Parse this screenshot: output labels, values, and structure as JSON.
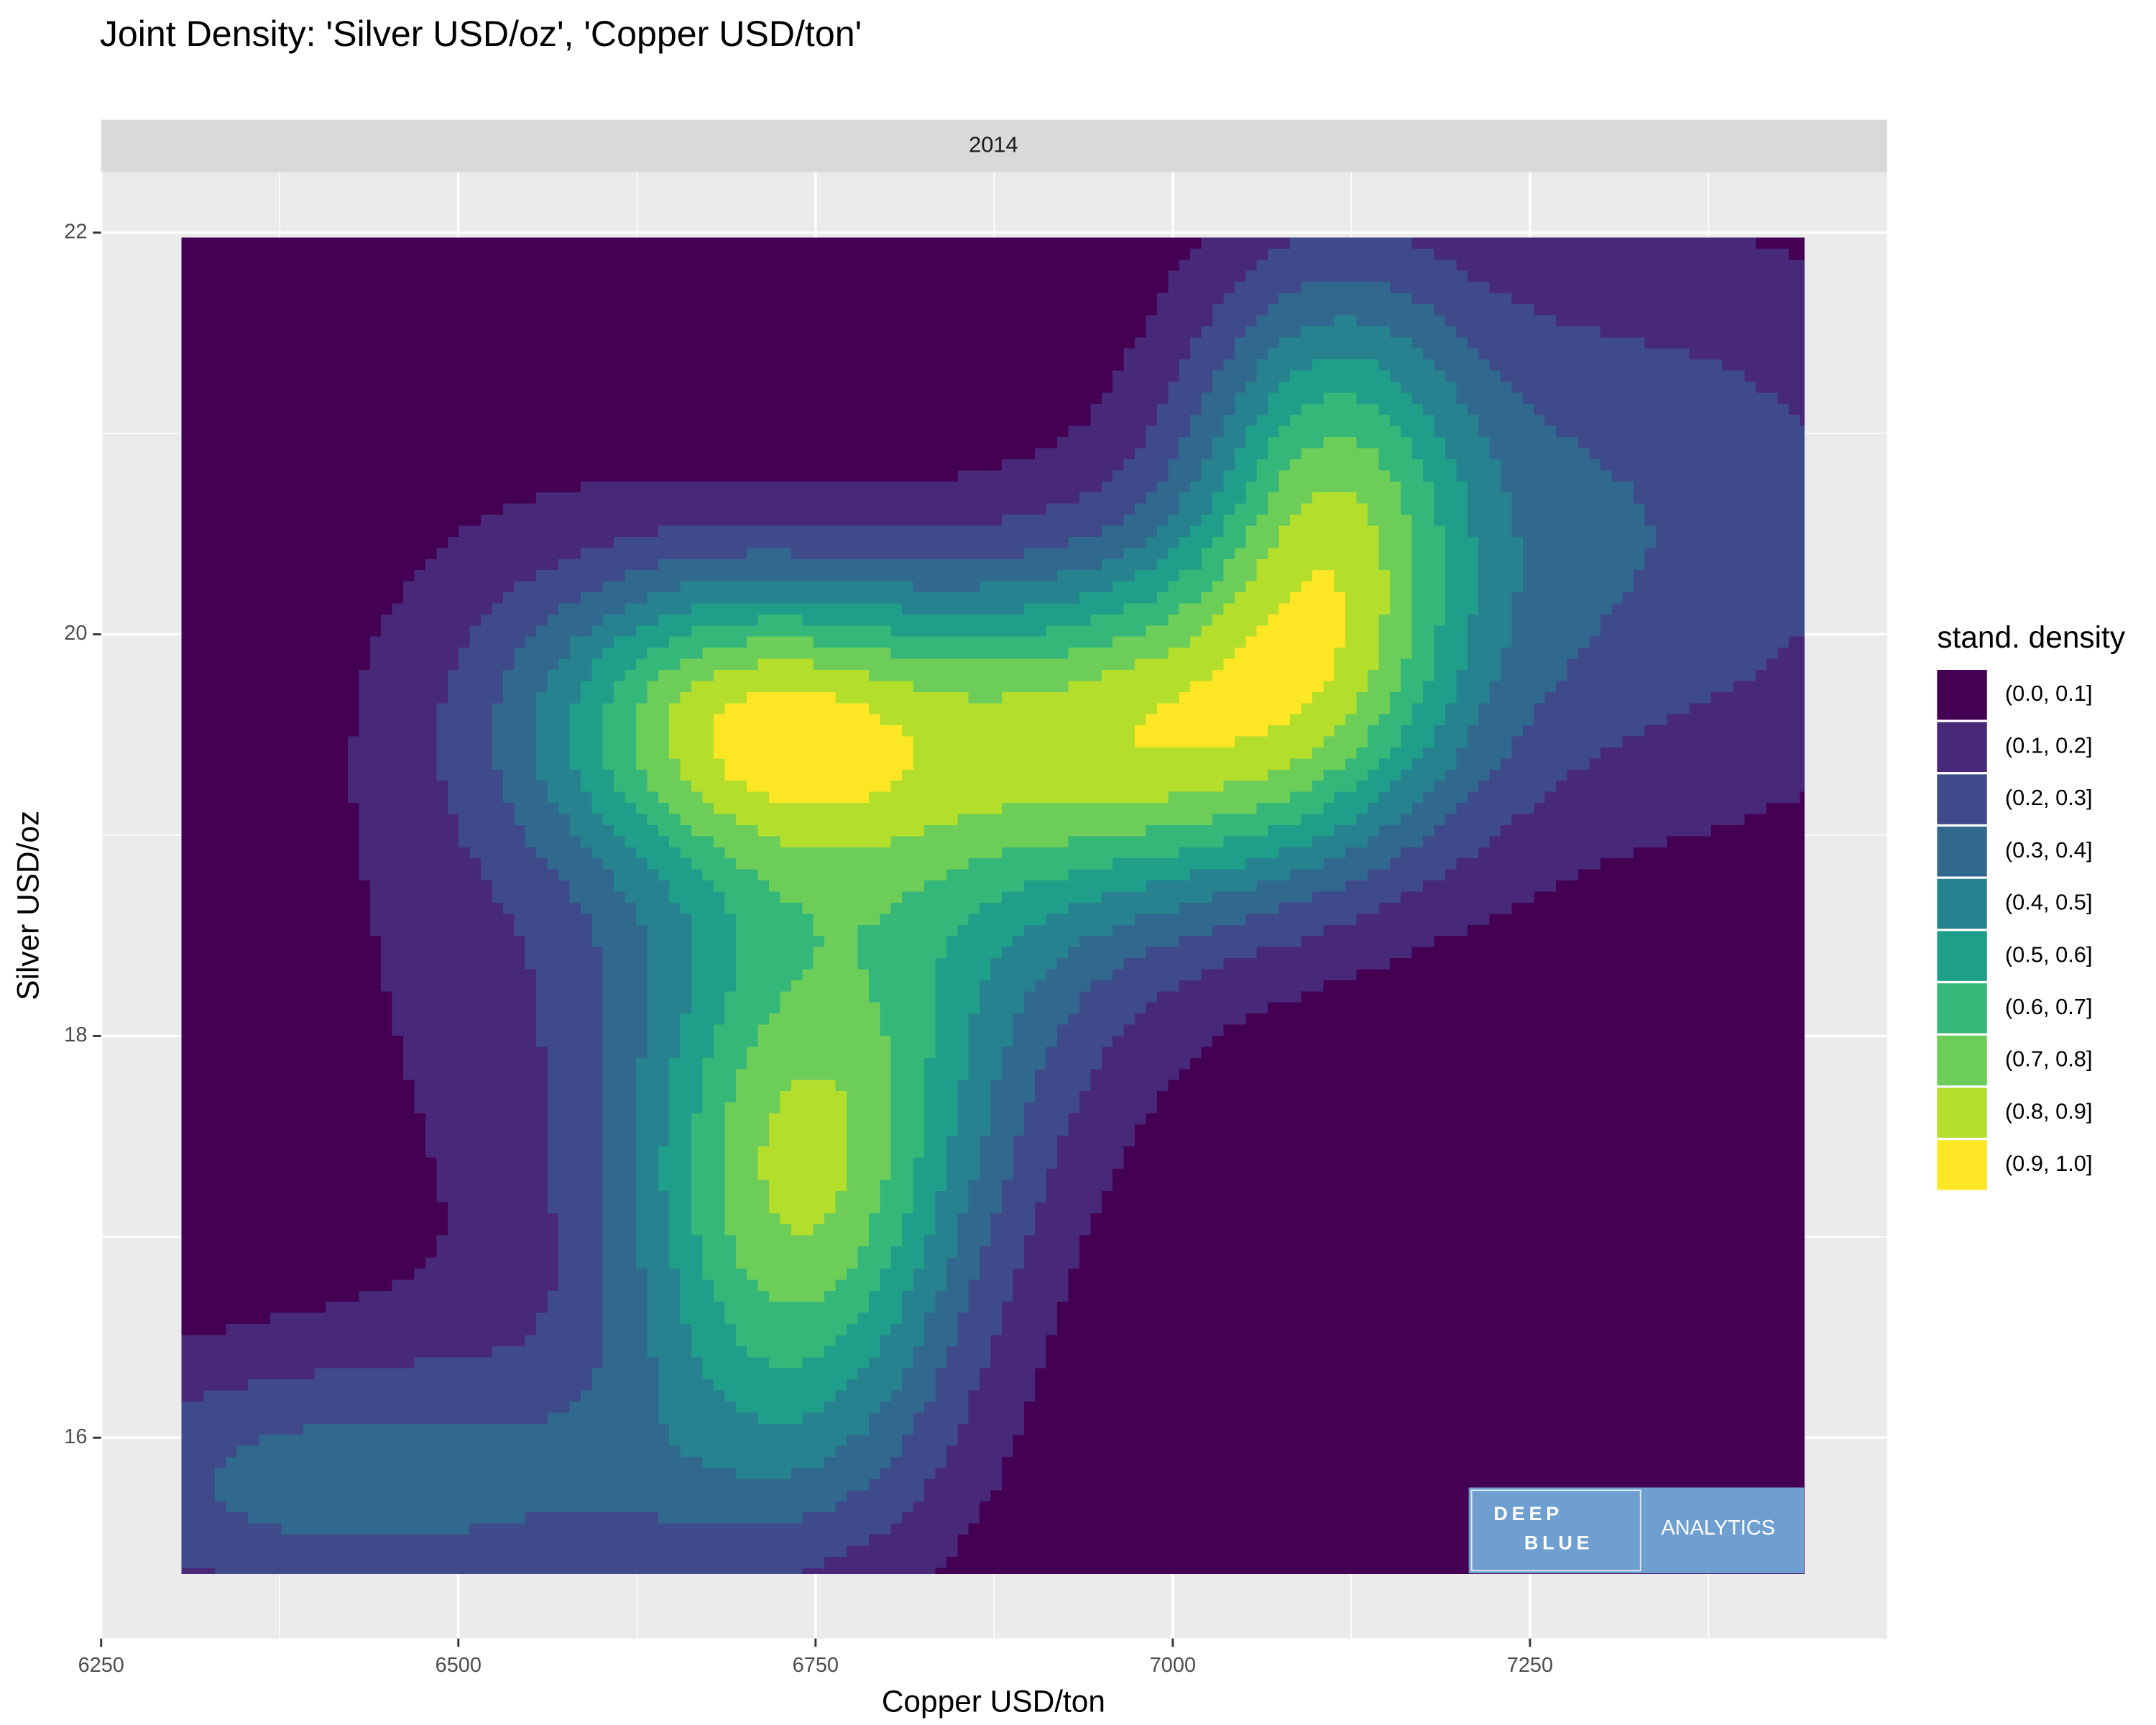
{
  "chart_data": {
    "type": "density2d",
    "title": "Joint Density: 'Silver USD/oz', 'Copper USD/ton'",
    "facet": "2014",
    "x_label": "Copper USD/ton",
    "y_label": "Silver USD/oz",
    "xlim": [
      6250,
      7500
    ],
    "ylim": [
      15.0,
      22.3
    ],
    "xticks": [
      6250,
      6500,
      6750,
      7000,
      7250
    ],
    "yticks": [
      16,
      18,
      20,
      22
    ],
    "grid": true,
    "legend": {
      "title": "stand. density",
      "position": "right",
      "categories": [
        "(0.0, 0.1]",
        "(0.1, 0.2]",
        "(0.2, 0.3]",
        "(0.3, 0.4]",
        "(0.4, 0.5]",
        "(0.5, 0.6]",
        "(0.6, 0.7]",
        "(0.7, 0.8]",
        "(0.8, 0.9]",
        "(0.9, 1.0]"
      ],
      "colors": [
        "#440154",
        "#482878",
        "#3E4A89",
        "#31688E",
        "#26828E",
        "#1F9E89",
        "#35B779",
        "#6DCD59",
        "#B4DE2C",
        "#FDE725"
      ]
    },
    "watermark": {
      "line1": "DEEP",
      "line2": "BLUE",
      "line3": "ANALYTICS"
    }
  }
}
